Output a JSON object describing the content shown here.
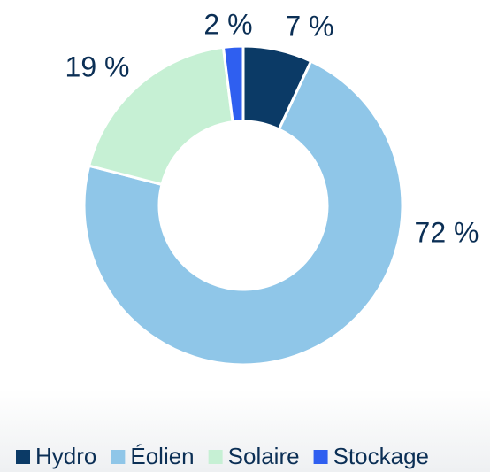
{
  "chart_data": {
    "type": "donut",
    "categories": [
      "Hydro",
      "Éolien",
      "Solaire",
      "Stockage"
    ],
    "values": [
      7,
      72,
      19,
      2
    ],
    "value_labels": [
      "7 %",
      "72 %",
      "19 %",
      "2 %"
    ],
    "colors": [
      "#0b3a66",
      "#8fc6e8",
      "#c6f0d4",
      "#2f5ff0"
    ],
    "legend": "bottom"
  }
}
